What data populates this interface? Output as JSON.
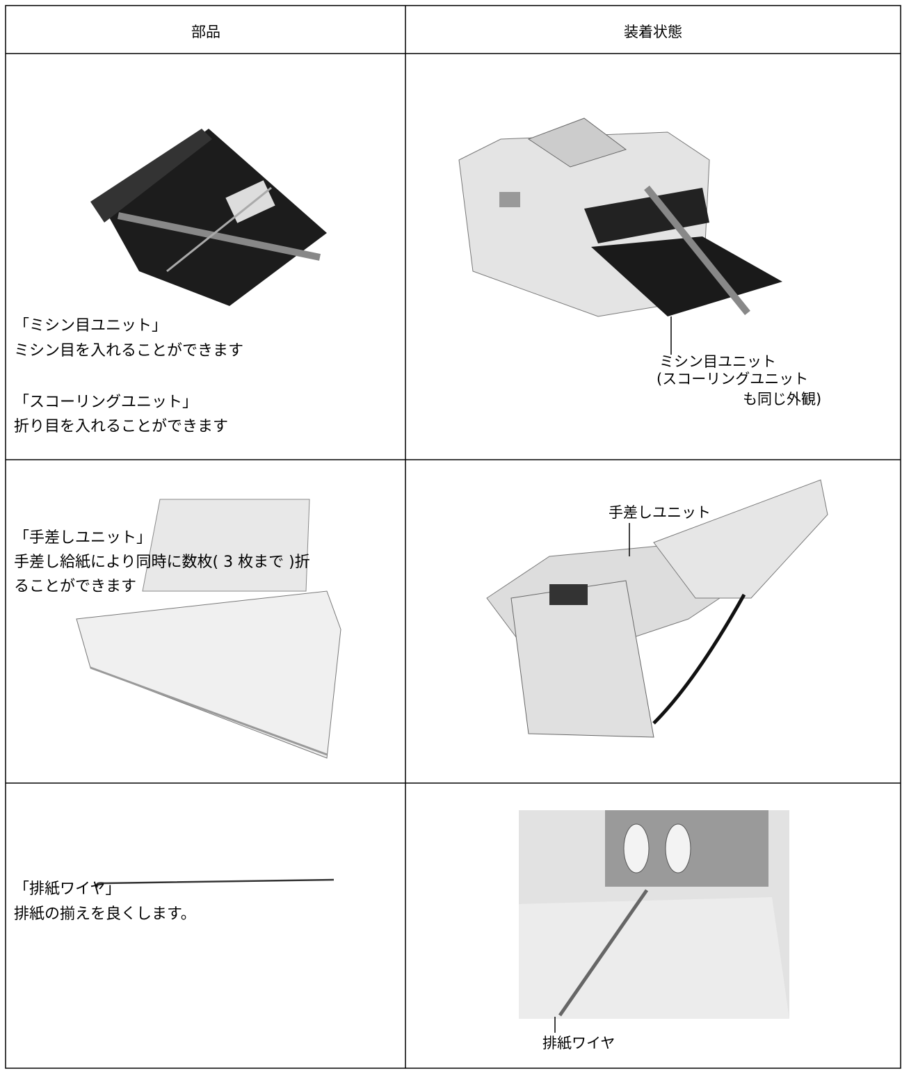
{
  "table": {
    "header": [
      "部品",
      "装着状態"
    ],
    "rows": [
      {
        "part": {
          "lines": [
            "「ミシン目ユニット」",
            "ミシン目を入れることができます",
            "「スコーリングユニット」",
            "折り目を入れることができます"
          ]
        },
        "installed": {
          "labels": [
            "ミシン目ユニット",
            "(スコーリングユニット",
            "も同じ外観)"
          ]
        }
      },
      {
        "part": {
          "lines": [
            "「手差しユニット」",
            "手差し給紙により同時に数枚( 3 枚まで )折",
            "ることができます"
          ]
        },
        "installed": {
          "labels": [
            "手差しユニット"
          ]
        }
      },
      {
        "part": {
          "lines": [
            "「排紙ワイヤ」",
            "排紙の揃えを良くします。"
          ]
        },
        "installed": {
          "labels": [
            "排紙ワイヤ"
          ]
        }
      }
    ]
  }
}
